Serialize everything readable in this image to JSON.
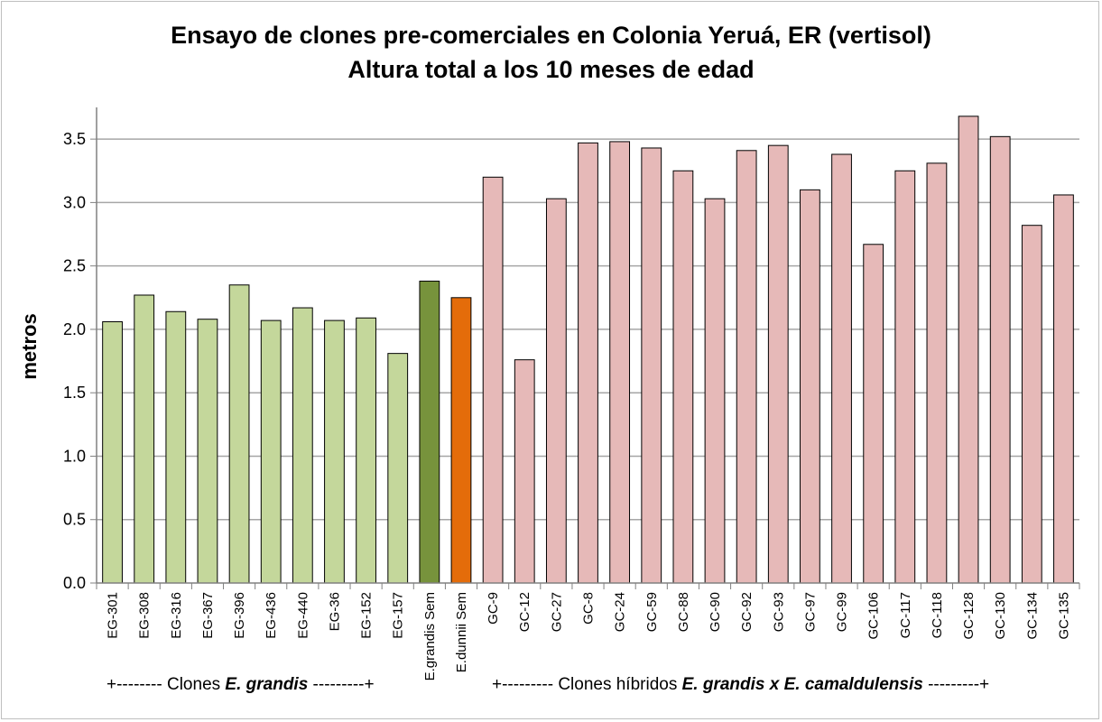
{
  "chart_data": {
    "type": "bar",
    "title_line1": "Ensayo de clones pre-comerciales en Colonia Yeruá, ER (vertisol)",
    "title_line2": "Altura total a los 10 meses de edad",
    "ylabel": "metros",
    "ylim": [
      0,
      3.75
    ],
    "yticks": [
      "0.0",
      "0.5",
      "1.0",
      "1.5",
      "2.0",
      "2.5",
      "3.0",
      "3.5"
    ],
    "grid": true,
    "categories": [
      "EG-301",
      "EG-308",
      "EG-316",
      "EG-367",
      "EG-396",
      "EG-436",
      "EG-440",
      "EG-36",
      "EG-152",
      "EG-157",
      "E.grandis Sem",
      "E.dunnii Sem",
      "GC-9",
      "GC-12",
      "GC-27",
      "GC-8",
      "GC-24",
      "GC-59",
      "GC-88",
      "GC-90",
      "GC-92",
      "GC-93",
      "GC-97",
      "GC-99",
      "GC-106",
      "GC-117",
      "GC-118",
      "GC-128",
      "GC-130",
      "GC-134",
      "GC-135"
    ],
    "values": [
      2.06,
      2.27,
      2.14,
      2.08,
      2.35,
      2.07,
      2.17,
      2.07,
      2.09,
      1.81,
      2.38,
      2.25,
      3.2,
      1.76,
      3.03,
      3.47,
      3.48,
      3.43,
      3.25,
      3.03,
      3.41,
      3.45,
      3.1,
      3.38,
      2.67,
      3.25,
      3.31,
      3.68,
      3.52,
      2.82,
      3.06
    ],
    "colors": {
      "grandis_clone": "#c4d79b",
      "grandis_seed": "#77933c",
      "dunnii_seed": "#e46c0a",
      "hybrid_clone": "#e6b9b8",
      "grid": "#a6a6a6",
      "bar_outline": "#000000"
    },
    "color_groups": [
      "grandis_clone",
      "grandis_clone",
      "grandis_clone",
      "grandis_clone",
      "grandis_clone",
      "grandis_clone",
      "grandis_clone",
      "grandis_clone",
      "grandis_clone",
      "grandis_clone",
      "grandis_seed",
      "dunnii_seed",
      "hybrid_clone",
      "hybrid_clone",
      "hybrid_clone",
      "hybrid_clone",
      "hybrid_clone",
      "hybrid_clone",
      "hybrid_clone",
      "hybrid_clone",
      "hybrid_clone",
      "hybrid_clone",
      "hybrid_clone",
      "hybrid_clone",
      "hybrid_clone",
      "hybrid_clone",
      "hybrid_clone",
      "hybrid_clone",
      "hybrid_clone",
      "hybrid_clone",
      "hybrid_clone"
    ],
    "group_captions": {
      "grandis_prefix": "+-------- Clones ",
      "grandis_italic": "E. grandis",
      "grandis_suffix": " ---------+",
      "hybrid_prefix": "+--------- Clones híbridos ",
      "hybrid_italic": "E. grandis x E. camaldulensis",
      "hybrid_suffix": " ---------+"
    }
  }
}
